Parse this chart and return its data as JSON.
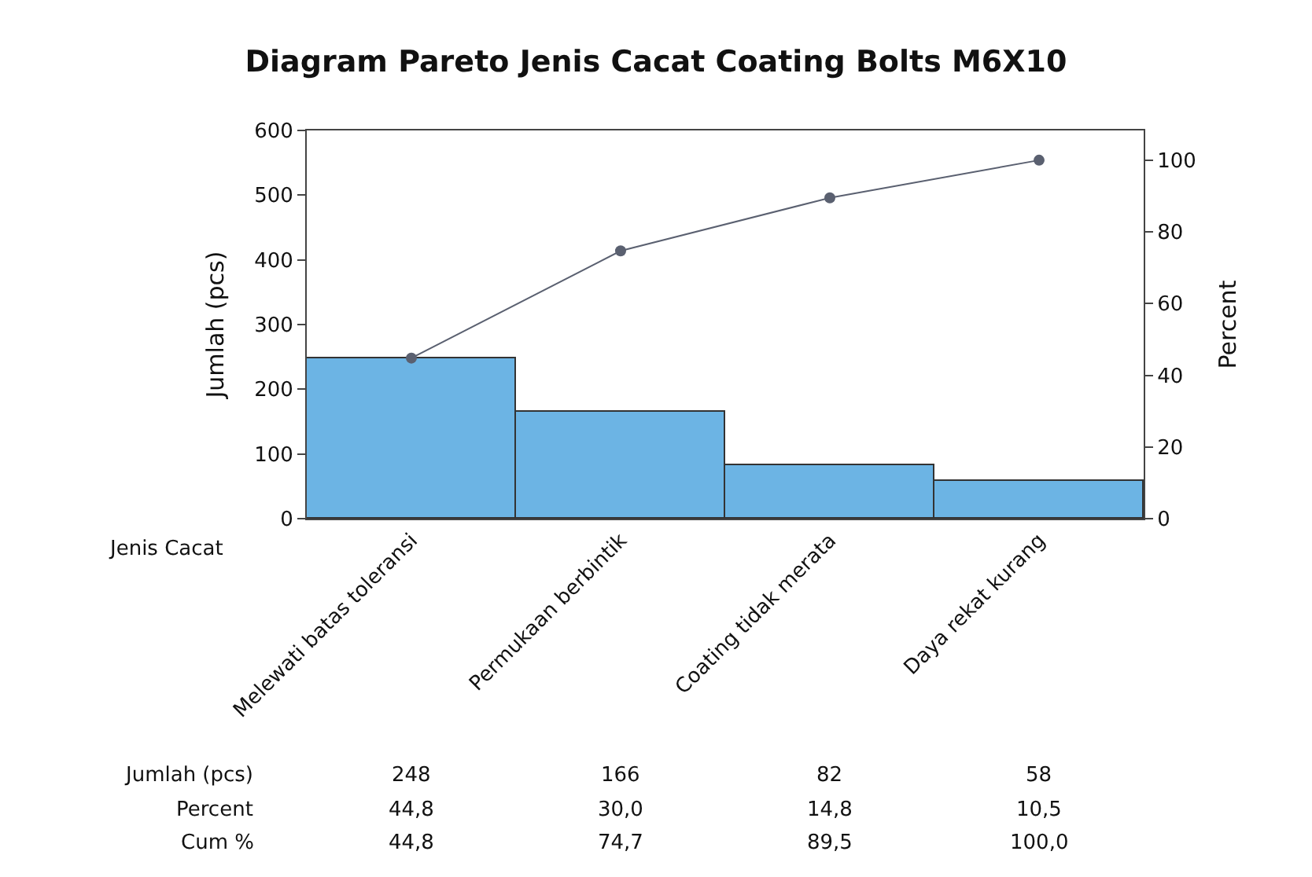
{
  "chart_data": {
    "type": "bar",
    "title": "Diagram Pareto Jenis Cacat Coating Bolts M6X10",
    "xlabel": "Jenis Cacat",
    "ylabel": "Jumlah (pcs)",
    "y2label": "Percent",
    "categories": [
      "Melewati batas toleransi",
      "Permukaan berbintik",
      "Coating tidak merata",
      "Daya rekat kurang"
    ],
    "series": [
      {
        "color": "#6cb4e4",
        "values": [
          248,
          166,
          82,
          58
        ],
        "value_labels": [
          "248",
          "166",
          "82",
          "58"
        ]
      },
      {
        "type": "line",
        "axis": "y2",
        "color": "#5a6070",
        "marker": "circle",
        "line_style": "solid",
        "values": [
          44.8,
          74.7,
          89.5,
          100.0
        ],
        "value_labels": [
          "44,8",
          "74,7",
          "89,5",
          "100,0"
        ]
      }
    ],
    "annotations": [
      "Jumlah (pcs)",
      "Percent",
      "Cum %",
      "44,8",
      "30,0",
      "14,8",
      "10,5"
    ],
    "data_labels": true,
    "ylim": [
      0,
      600
    ],
    "yticks": [
      0,
      100,
      200,
      300,
      400,
      500,
      600
    ],
    "y2lim": [
      0,
      108.3
    ],
    "y2ticks": [
      0,
      20,
      40,
      60,
      80,
      100
    ]
  }
}
